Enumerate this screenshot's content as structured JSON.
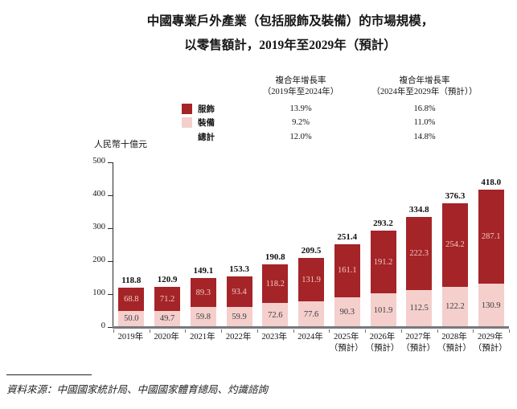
{
  "page": {
    "title_line1": "中國專業戶外產業（包括服飾及裝備）的市場規模，",
    "title_line2": "以零售額計，2019年至2029年（預計）",
    "source": "資料來源：中國國家統計局、中國國家體育總局、灼識諮詢"
  },
  "cagr_table": {
    "col1_header_line1": "複合年增長率",
    "col1_header_line2": "（2019年至2024年）",
    "col2_header_line1": "複合年增長率",
    "col2_header_line2": "（2024年至2029年（預計））",
    "rows": [
      {
        "label": "服飾",
        "cagr_2019_2024": "13.9%",
        "cagr_2024_2029": "16.8%"
      },
      {
        "label": "裝備",
        "cagr_2019_2024": "9.2%",
        "cagr_2024_2029": "11.0%"
      },
      {
        "label": "總計",
        "cagr_2019_2024": "12.0%",
        "cagr_2024_2029": "14.8%"
      }
    ]
  },
  "colors": {
    "apparel": "#A42428",
    "equipment": "#F4CFCC",
    "baseline": "#77787B",
    "axis": "#2A2A2A"
  },
  "chart_data": {
    "type": "bar",
    "stacked": true,
    "title": "中國專業戶外產業（包括服飾及裝備）的市場規模，以零售額計，2019年至2029年（預計）",
    "ylabel": "人民幣十億元",
    "ylim": [
      0,
      500
    ],
    "yticks": [
      0,
      100,
      200,
      300,
      400,
      500
    ],
    "grid": false,
    "legend_position": "top",
    "categories": [
      {
        "label": "2019年",
        "sub": ""
      },
      {
        "label": "2020年",
        "sub": ""
      },
      {
        "label": "2021年",
        "sub": ""
      },
      {
        "label": "2022年",
        "sub": ""
      },
      {
        "label": "2023年",
        "sub": ""
      },
      {
        "label": "2024年",
        "sub": ""
      },
      {
        "label": "2025年",
        "sub": "（預計）"
      },
      {
        "label": "2026年",
        "sub": "（預計）"
      },
      {
        "label": "2027年",
        "sub": "（預計）"
      },
      {
        "label": "2028年",
        "sub": "（預計）"
      },
      {
        "label": "2029年",
        "sub": "（預計）"
      }
    ],
    "series": [
      {
        "name": "服飾",
        "color": "#A42428",
        "values": [
          68.8,
          71.2,
          89.3,
          93.4,
          118.2,
          131.9,
          161.1,
          191.2,
          222.3,
          254.2,
          287.1
        ]
      },
      {
        "name": "裝備",
        "color": "#F4CFCC",
        "values": [
          50.0,
          49.7,
          59.8,
          59.9,
          72.6,
          77.6,
          90.3,
          101.9,
          112.5,
          122.2,
          130.9
        ]
      }
    ],
    "totals": [
      118.8,
      120.9,
      149.1,
      153.3,
      190.8,
      209.5,
      251.4,
      293.2,
      334.8,
      376.3,
      418.0
    ]
  }
}
